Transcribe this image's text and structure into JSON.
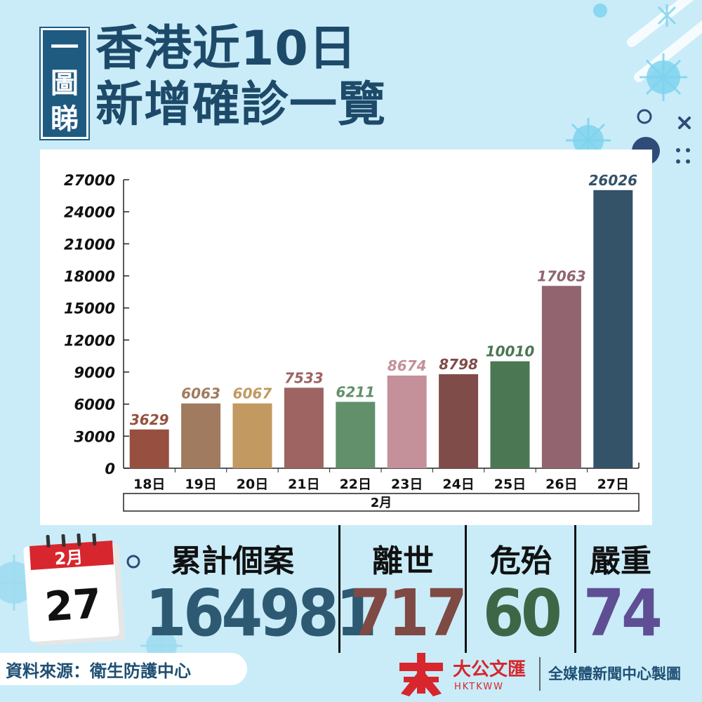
{
  "header": {
    "badge": [
      "一",
      "圖",
      "睇"
    ],
    "title_line1": "香港近10日",
    "title_line2": "新增確診一覽"
  },
  "chart_data": {
    "type": "bar",
    "categories": [
      "18日",
      "19日",
      "20日",
      "21日",
      "22日",
      "23日",
      "24日",
      "25日",
      "26日",
      "27日"
    ],
    "values": [
      3629,
      6063,
      6067,
      7533,
      6211,
      8674,
      8798,
      10010,
      17063,
      26026
    ],
    "colors": [
      "#97503f",
      "#a07b5f",
      "#c19961",
      "#9d6462",
      "#61906b",
      "#c4909a",
      "#7f4c49",
      "#4b7752",
      "#91646f",
      "#345268"
    ],
    "label_colors": [
      "#97503f",
      "#a07b5f",
      "#c19961",
      "#9d6462",
      "#61906b",
      "#c4909a",
      "#7f4c49",
      "#4b7752",
      "#91646f",
      "#345268"
    ],
    "yticks": [
      0,
      3000,
      6000,
      9000,
      12000,
      15000,
      18000,
      21000,
      24000,
      27000
    ],
    "ylim": [
      0,
      27000
    ],
    "group_label": "2月",
    "grid": false
  },
  "stats": {
    "cumulative": {
      "label": "累計個案",
      "value": "164981",
      "color": "#2d5a72"
    },
    "deaths": {
      "label": "離世",
      "value": "717",
      "color": "#7f4944"
    },
    "critical": {
      "label": "危殆",
      "value": "60",
      "color": "#3d6646"
    },
    "serious": {
      "label": "嚴重",
      "value": "74",
      "color": "#5f4e94"
    }
  },
  "calendar": {
    "month": "2月",
    "day": "27"
  },
  "footer": {
    "source": "資料來源：衛生防護中心",
    "logo_text": "大公文匯",
    "logo_sub": "HKTKWW",
    "credit": "全媒體新聞中心製圖"
  }
}
